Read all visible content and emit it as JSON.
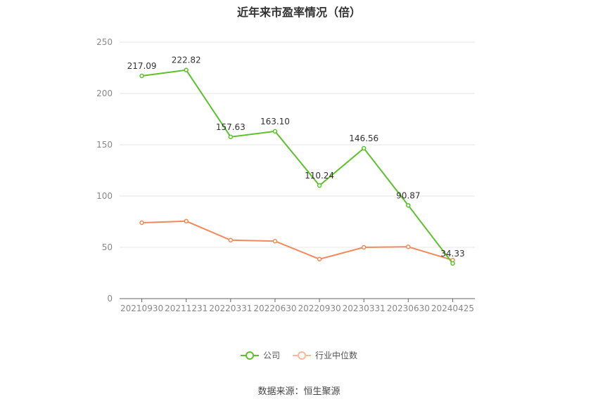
{
  "chart_data": {
    "type": "line",
    "title": "近年来市盈率情况（倍）",
    "categories": [
      "20210930",
      "20211231",
      "20220331",
      "20220630",
      "20220930",
      "20230331",
      "20230630",
      "20240425"
    ],
    "series": [
      {
        "name": "公司",
        "color": "#5cc12a",
        "values": [
          217.09,
          222.82,
          157.63,
          163.1,
          110.24,
          146.56,
          90.87,
          34.33
        ],
        "labels": [
          "217.09",
          "222.82",
          "157.63",
          "163.10",
          "110.24",
          "146.56",
          "90.87",
          "34.33"
        ]
      },
      {
        "name": "行业中位数",
        "color": "#f08a5a",
        "values": [
          74,
          75.5,
          57,
          56,
          38.5,
          50,
          50.5,
          37.5
        ]
      }
    ],
    "ylim": [
      0,
      250
    ],
    "yticks": [
      "0",
      "50",
      "100",
      "150",
      "200",
      "250"
    ],
    "grid": true,
    "legend": "bottom"
  },
  "source": "数据来源：恒生聚源"
}
